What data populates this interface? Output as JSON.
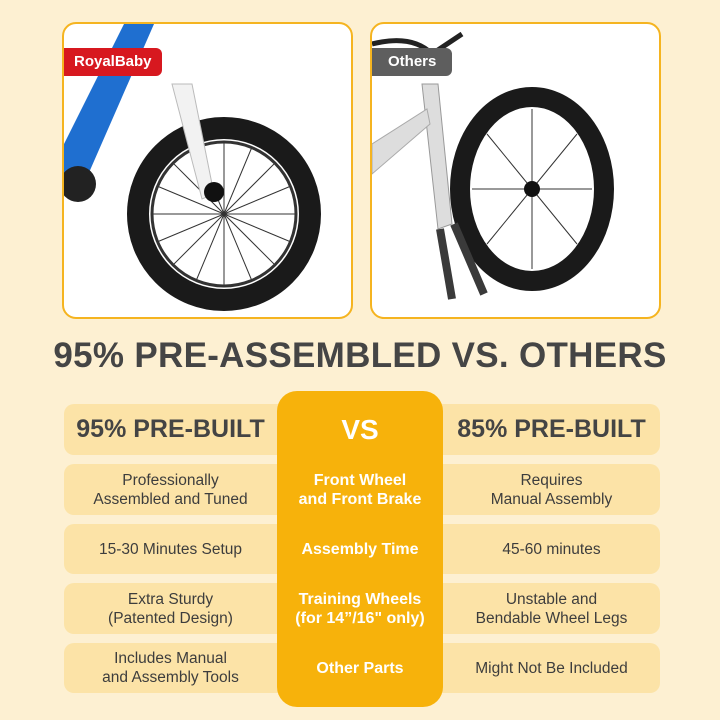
{
  "panels": {
    "left": {
      "label": "RoyalBaby",
      "label_color": "#d7181f"
    },
    "right": {
      "label": "Others",
      "label_color": "#5e5e5e"
    }
  },
  "title": "95% PRE-ASSEMBLED VS. OTHERS",
  "comparison": {
    "header": {
      "left": "95% PRE-BUILT",
      "center": "VS",
      "right": "85% PRE-BUILT"
    },
    "rows": [
      {
        "left": "Professionally\nAssembled and Tuned",
        "center": "Front Wheel\nand Front Brake",
        "right": "Requires\nManual Assembly"
      },
      {
        "left": "15-30 Minutes Setup",
        "center": "Assembly Time",
        "right": "45-60 minutes"
      },
      {
        "left": "Extra Sturdy\n(Patented Design)",
        "center": "Training Wheels\n(for 14”/16\" only)",
        "right": "Unstable and\nBendable Wheel Legs"
      },
      {
        "left": "Includes Manual\nand Assembly Tools",
        "center": "Other Parts",
        "right": "Might Not Be Included"
      }
    ]
  },
  "colors": {
    "background": "#fdf0d2",
    "accent": "#f7b20b",
    "row": "#fce3a7",
    "text": "#444444"
  }
}
